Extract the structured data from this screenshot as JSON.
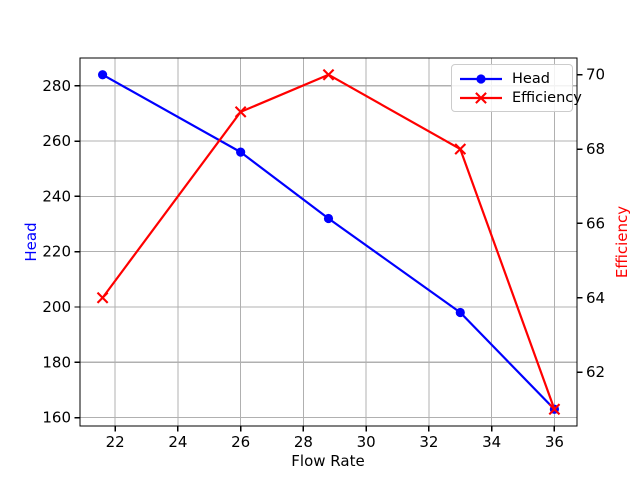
{
  "chart_data": {
    "type": "line",
    "xlabel": "Flow Rate",
    "ylabels": {
      "left": "Head",
      "right": "Efficiency"
    },
    "x": [
      21.6,
      26.0,
      28.8,
      33.0,
      36.0
    ],
    "series": [
      {
        "name": "Head",
        "axis": "left",
        "color": "#0000ff",
        "marker": "circle",
        "values": [
          284,
          256,
          232,
          198,
          163
        ]
      },
      {
        "name": "Efficiency",
        "axis": "right",
        "color": "#ff0000",
        "marker": "x",
        "values": [
          64,
          69,
          70,
          68,
          61
        ]
      }
    ],
    "xlim": [
      20.88,
      36.72
    ],
    "ylim_left": [
      156.95,
      290.05
    ],
    "ylim_right": [
      60.55,
      70.45
    ],
    "xticks": [
      22,
      24,
      26,
      28,
      30,
      32,
      34,
      36
    ],
    "yticks_left": [
      160,
      180,
      200,
      220,
      240,
      260,
      280
    ],
    "yticks_right": [
      62,
      64,
      66,
      68,
      70
    ],
    "grid": true,
    "grid_color": "#b0b0b0",
    "axis_color": "#000000",
    "tick_label_color": "#000000",
    "background": "#ffffff",
    "legend": {
      "position": "upper right",
      "entries": [
        "Head",
        "Efficiency"
      ]
    }
  }
}
